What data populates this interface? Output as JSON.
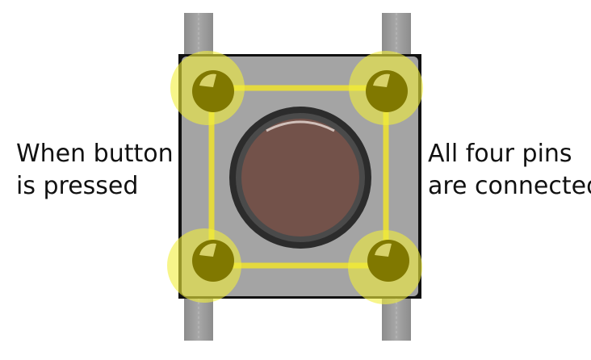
{
  "left_caption": {
    "line1": "When button",
    "line2": "is pressed"
  },
  "right_caption": {
    "line1": "All four pins",
    "line2": "are connected"
  },
  "colors": {
    "pin_leg": "#9a9a9a",
    "switch_body": "#a4a4a4",
    "body_corner": "#111111",
    "highlight_glow": "#f2ee3c",
    "connection_line": "#e8dc3a",
    "pin_head": "#807800",
    "pin_shine": "#d8d26a",
    "button_ring": "#2c2c2c",
    "button_cap": "#73524a"
  }
}
